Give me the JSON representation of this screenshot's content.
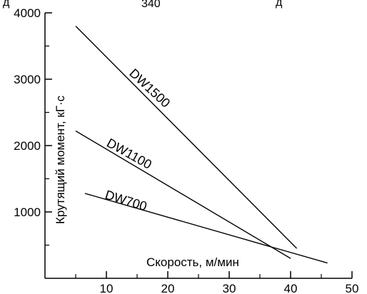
{
  "chart_data": {
    "type": "line",
    "title": "",
    "xlabel": "Скорость, м/мин",
    "ylabel": "Крутящий момент, кГ·с",
    "xlim": [
      0,
      50
    ],
    "ylim": [
      0,
      4000
    ],
    "x_ticks": [
      10,
      20,
      30,
      40,
      50
    ],
    "y_ticks": [
      1000,
      2000,
      3000,
      4000
    ],
    "grid": false,
    "legend": "none (inline labels)",
    "series": [
      {
        "name": "DW1500",
        "points": [
          [
            5,
            3800
          ],
          [
            41,
            450
          ]
        ]
      },
      {
        "name": "DW1100",
        "points": [
          [
            5,
            2220
          ],
          [
            40,
            300
          ]
        ]
      },
      {
        "name": "DW700",
        "points": [
          [
            6.5,
            1280
          ],
          [
            46,
            230
          ]
        ]
      }
    ],
    "top_fragments": [
      "д",
      "340",
      "д"
    ]
  }
}
